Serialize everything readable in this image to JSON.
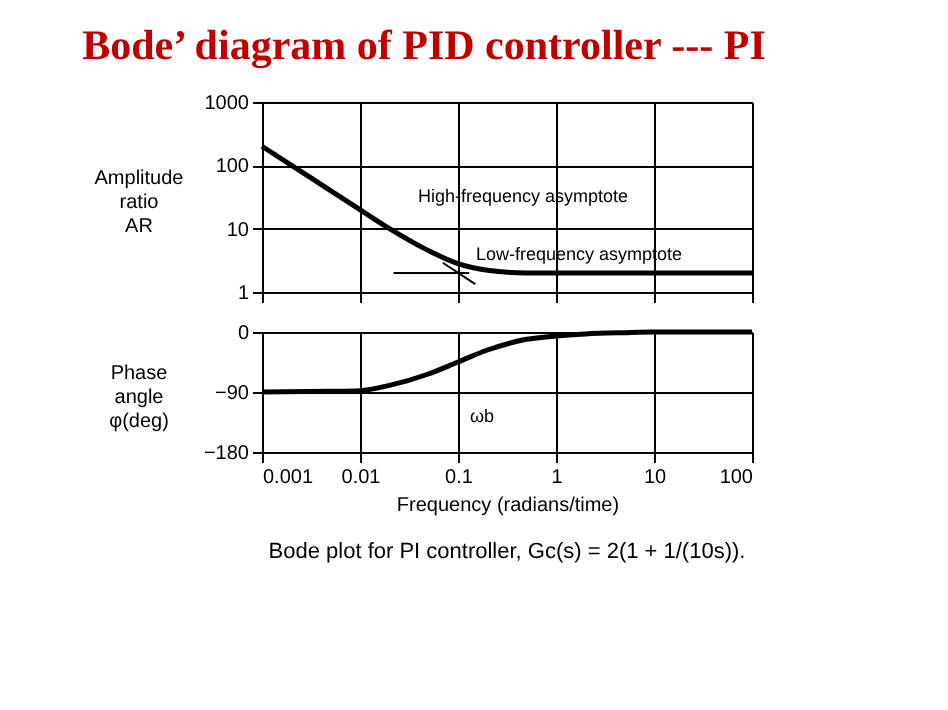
{
  "chart_data": [
    {
      "type": "line",
      "title": "Bode’ diagram of PID controller --- PI",
      "ylabel": "Amplitude ratio AR",
      "log": "xy",
      "xlim": [
        0.001,
        100
      ],
      "xticks": [
        0.001,
        0.01,
        0.1,
        1,
        10,
        100
      ],
      "ylim": [
        1,
        1000
      ],
      "yticks": [
        1,
        10,
        100,
        1000
      ],
      "grid": true,
      "tick_labels": "y",
      "series": [
        {
          "color": "#000000",
          "x": [
            0.001,
            0.002,
            0.005,
            0.01,
            0.02,
            0.05,
            0.1,
            0.2,
            0.5,
            1,
            10,
            100
          ],
          "values": [
            200,
            100,
            40,
            20,
            10,
            4.5,
            2.8,
            2.2,
            2.0,
            2,
            2,
            2
          ]
        },
        {
          "color": "#000000",
          "x": [
            0.022,
            0.13
          ],
          "values": [
            2,
            2
          ]
        },
        {
          "color": "#000000",
          "x": [
            0.07,
            0.15
          ],
          "values": [
            2.9,
            1.33
          ]
        }
      ],
      "annotations": [
        "High-frequency asymptote",
        "Low-frequency asymptote"
      ]
    },
    {
      "type": "line",
      "ylabel": "Phase angle φ(deg)",
      "xlabel": "Frequency (radians/time)",
      "log": "x",
      "xlim": [
        0.001,
        100
      ],
      "xticks": [
        0.001,
        0.01,
        0.1,
        1,
        10,
        100
      ],
      "ylim": [
        -180,
        0
      ],
      "yticks": [
        -180,
        -90,
        0
      ],
      "grid": true,
      "series": [
        {
          "color": "#000000",
          "x": [
            0.001,
            0.005,
            0.01,
            0.02,
            0.05,
            0.1,
            0.2,
            0.5,
            1,
            2,
            5,
            10,
            100
          ],
          "values": [
            -90,
            -89,
            -88,
            -80,
            -63,
            -45,
            -27,
            -11,
            -6,
            -3,
            -1,
            0,
            0
          ]
        }
      ],
      "annotations": [
        "ωb",
        "Bode plot for PI controller, Gc(s) = 2(1 + 1/(10s))."
      ]
    }
  ]
}
